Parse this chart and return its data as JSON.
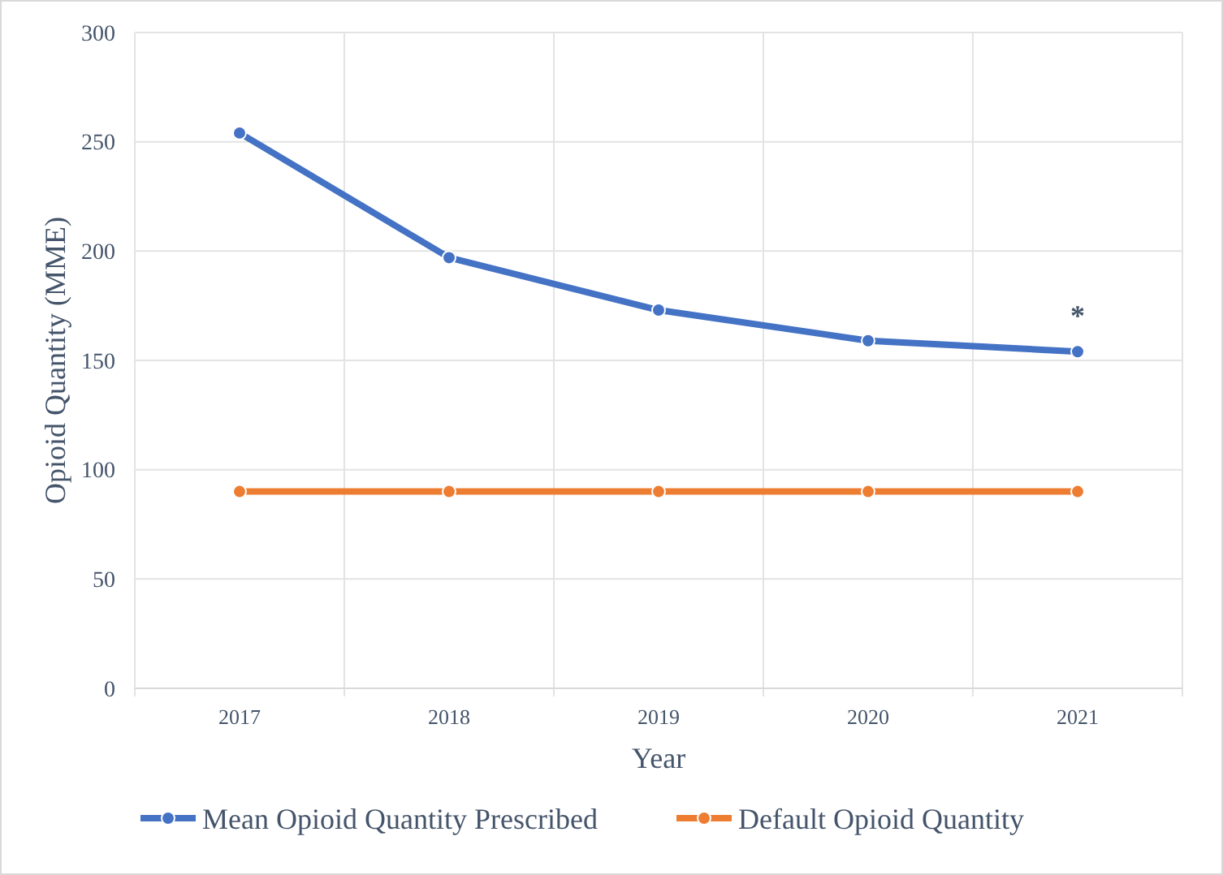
{
  "chart_data": {
    "type": "line",
    "xlabel": "Year",
    "ylabel": "Opioid Quantity (MME)",
    "categories": [
      "2017",
      "2018",
      "2019",
      "2020",
      "2021"
    ],
    "series": [
      {
        "name": "Mean Opioid Quantity Prescribed",
        "color": "#4472c4",
        "values": [
          254,
          197,
          173,
          159,
          154
        ]
      },
      {
        "name": "Default Opioid Quantity",
        "color": "#ed7d31",
        "values": [
          90,
          90,
          90,
          90,
          90
        ]
      }
    ],
    "ylim": [
      0,
      300
    ],
    "yticks": [
      0,
      50,
      100,
      150,
      200,
      250,
      300
    ],
    "annotations": [
      {
        "text": "*",
        "x": "2021",
        "y": 154
      }
    ],
    "grid": true,
    "legend": "bottom",
    "marker": "circle",
    "line_style": "solid"
  }
}
